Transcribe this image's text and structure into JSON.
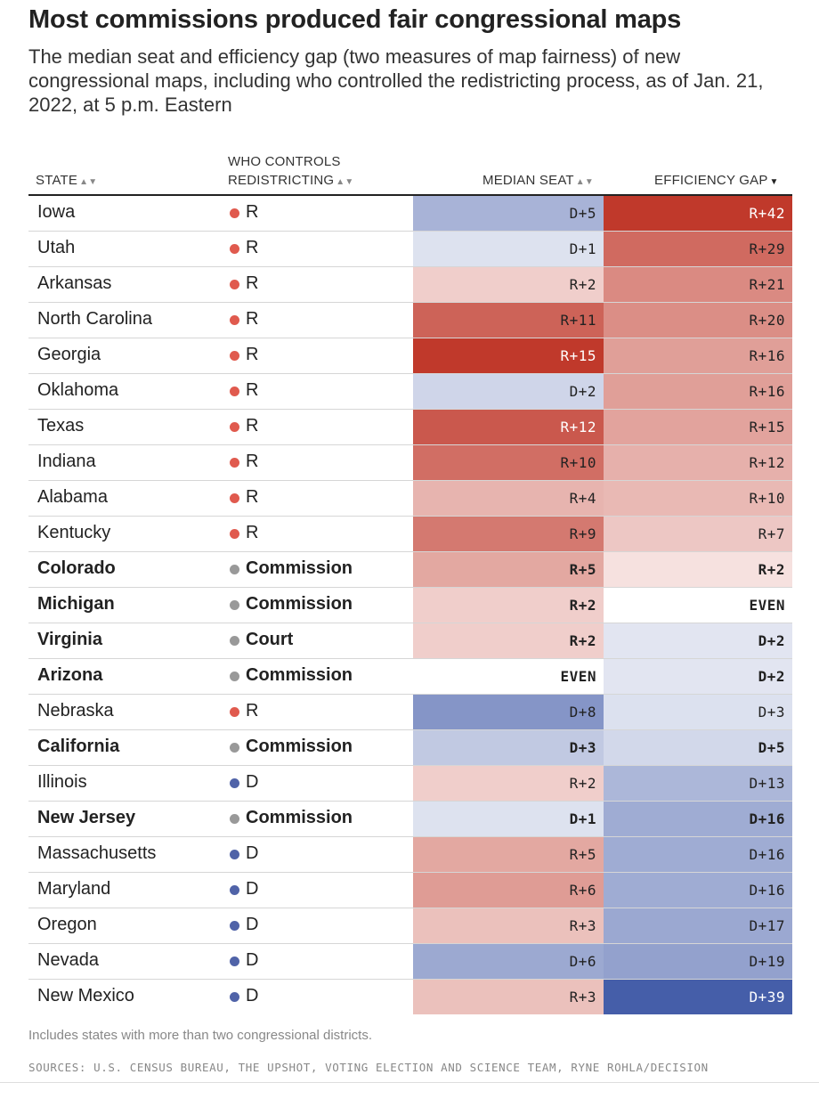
{
  "title": "Most commissions produced fair congressional maps",
  "subtitle": "The median seat and efficiency gap (two measures of map fairness) of new congressional maps, including who controlled the redistricting process, as of Jan. 21, 2022, at 5 p.m. Eastern",
  "columns": {
    "state": "STATE",
    "controls_line1": "WHO CONTROLS",
    "controls_line2": "REDISTRICTING",
    "median": "MEDIAN SEAT",
    "gap": "EFFICIENCY GAP",
    "sort_arrow": "▲▼",
    "sort_arrow_active": "▼"
  },
  "colors": {
    "republican": "#e05a4e",
    "democrat": "#5063a8",
    "commission": "#999999",
    "red_scale_max": "#c0392b",
    "blue_scale_max": "#3a54a4"
  },
  "chart_data": {
    "type": "table",
    "columns": [
      "State",
      "Who controls redistricting",
      "Median seat",
      "Efficiency gap"
    ],
    "sorted_by": "Efficiency gap",
    "rows": [
      {
        "state": "Iowa",
        "control": "R",
        "median": "D+5",
        "median_value": -5,
        "gap": "R+42",
        "gap_value": 42
      },
      {
        "state": "Utah",
        "control": "R",
        "median": "D+1",
        "median_value": -1,
        "gap": "R+29",
        "gap_value": 29
      },
      {
        "state": "Arkansas",
        "control": "R",
        "median": "R+2",
        "median_value": 2,
        "gap": "R+21",
        "gap_value": 21
      },
      {
        "state": "North Carolina",
        "control": "R",
        "median": "R+11",
        "median_value": 11,
        "gap": "R+20",
        "gap_value": 20
      },
      {
        "state": "Georgia",
        "control": "R",
        "median": "R+15",
        "median_value": 15,
        "gap": "R+16",
        "gap_value": 16
      },
      {
        "state": "Oklahoma",
        "control": "R",
        "median": "D+2",
        "median_value": -2,
        "gap": "R+16",
        "gap_value": 16
      },
      {
        "state": "Texas",
        "control": "R",
        "median": "R+12",
        "median_value": 12,
        "gap": "R+15",
        "gap_value": 15
      },
      {
        "state": "Indiana",
        "control": "R",
        "median": "R+10",
        "median_value": 10,
        "gap": "R+12",
        "gap_value": 12
      },
      {
        "state": "Alabama",
        "control": "R",
        "median": "R+4",
        "median_value": 4,
        "gap": "R+10",
        "gap_value": 10
      },
      {
        "state": "Kentucky",
        "control": "R",
        "median": "R+9",
        "median_value": 9,
        "gap": "R+7",
        "gap_value": 7
      },
      {
        "state": "Colorado",
        "control": "Commission",
        "median": "R+5",
        "median_value": 5,
        "gap": "R+2",
        "gap_value": 2
      },
      {
        "state": "Michigan",
        "control": "Commission",
        "median": "R+2",
        "median_value": 2,
        "gap": "EVEN",
        "gap_value": 0
      },
      {
        "state": "Virginia",
        "control": "Court",
        "median": "R+2",
        "median_value": 2,
        "gap": "D+2",
        "gap_value": -2
      },
      {
        "state": "Arizona",
        "control": "Commission",
        "median": "EVEN",
        "median_value": 0,
        "gap": "D+2",
        "gap_value": -2
      },
      {
        "state": "Nebraska",
        "control": "R",
        "median": "D+8",
        "median_value": -8,
        "gap": "D+3",
        "gap_value": -3
      },
      {
        "state": "California",
        "control": "Commission",
        "median": "D+3",
        "median_value": -3,
        "gap": "D+5",
        "gap_value": -5
      },
      {
        "state": "Illinois",
        "control": "D",
        "median": "R+2",
        "median_value": 2,
        "gap": "D+13",
        "gap_value": -13
      },
      {
        "state": "New Jersey",
        "control": "Commission",
        "median": "D+1",
        "median_value": -1,
        "gap": "D+16",
        "gap_value": -16
      },
      {
        "state": "Massachusetts",
        "control": "D",
        "median": "R+5",
        "median_value": 5,
        "gap": "D+16",
        "gap_value": -16
      },
      {
        "state": "Maryland",
        "control": "D",
        "median": "R+6",
        "median_value": 6,
        "gap": "D+16",
        "gap_value": -16
      },
      {
        "state": "Oregon",
        "control": "D",
        "median": "R+3",
        "median_value": 3,
        "gap": "D+17",
        "gap_value": -17
      },
      {
        "state": "Nevada",
        "control": "D",
        "median": "D+6",
        "median_value": -6,
        "gap": "D+19",
        "gap_value": -19
      },
      {
        "state": "New Mexico",
        "control": "D",
        "median": "R+3",
        "median_value": 3,
        "gap": "D+39",
        "gap_value": -39
      }
    ]
  },
  "note": "Includes states with more than two congressional districts.",
  "sources": "SOURCES: U.S. CENSUS BUREAU, THE UPSHOT, VOTING ELECTION AND SCIENCE TEAM, RYNE ROHLA/DECISION"
}
